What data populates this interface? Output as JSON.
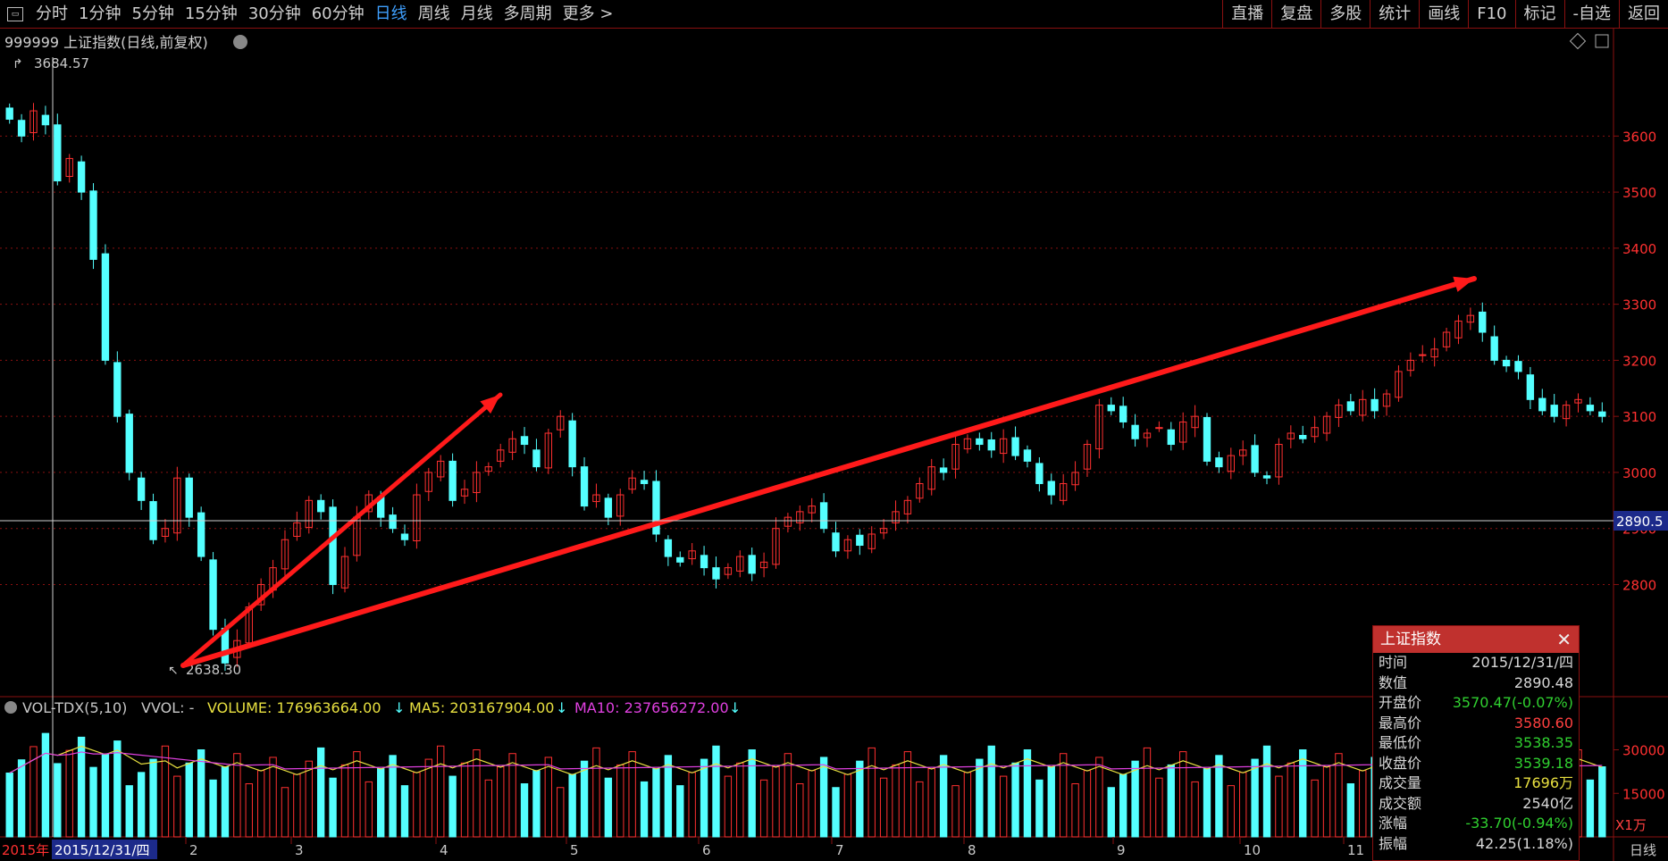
{
  "toolbar": {
    "menu_icon": "menu-icon",
    "periods": [
      "分时",
      "1分钟",
      "5分钟",
      "15分钟",
      "30分钟",
      "60分钟",
      "日线",
      "周线",
      "月线",
      "多周期",
      "更多 >"
    ],
    "active_period": "日线",
    "right_buttons": [
      "直播",
      "复盘",
      "多股",
      "统计",
      "画线",
      "F10",
      "标记",
      "-自选",
      "返回"
    ]
  },
  "chart_header": {
    "title": "999999 上证指数(日线,前复权)",
    "icons": [
      "dropdown-icon",
      "diamond-icon",
      "window-icon"
    ]
  },
  "price_markers": {
    "high": "3684.57",
    "low": "2638.30",
    "crosshair_value": "2890.5"
  },
  "price_axis_labels": [
    "3600",
    "3500",
    "3400",
    "3300",
    "3200",
    "3100",
    "3000",
    "2900",
    "2800"
  ],
  "volume_header": {
    "name": "VOL-TDX(5,10)",
    "vvol": "VVOL: -",
    "volume": "VOLUME: 176963664.00",
    "ma5": "MA5: 203167904.00",
    "ma10": "MA10: 237656272.00",
    "arrow": "↓"
  },
  "volume_axis_labels": [
    "30000",
    "15000"
  ],
  "volume_unit": "X1万",
  "date_axis": {
    "year_label": "2015年",
    "selected_date": "2015/12/31/四",
    "months": [
      "2",
      "3",
      "4",
      "5",
      "6",
      "7",
      "8",
      "9",
      "10",
      "11"
    ],
    "period_label": "日线"
  },
  "info_panel": {
    "title": "上证指数",
    "rows": [
      {
        "label": "时间",
        "value": "2015/12/31/四",
        "color": "#d8d8d8"
      },
      {
        "label": "数值",
        "value": "2890.48",
        "color": "#d8d8d8"
      },
      {
        "label": "开盘价",
        "value": "3570.47(-0.07%)",
        "color": "#30d030"
      },
      {
        "label": "最高价",
        "value": "3580.60",
        "color": "#ff4040"
      },
      {
        "label": "最低价",
        "value": "3538.35",
        "color": "#30d030"
      },
      {
        "label": "收盘价",
        "value": "3539.18",
        "color": "#30d030"
      },
      {
        "label": "成交量",
        "value": "17696万",
        "color": "#e8e040"
      },
      {
        "label": "成交额",
        "value": "2540亿",
        "color": "#d8d8d8"
      },
      {
        "label": "涨幅",
        "value": "-33.70(-0.94%)",
        "color": "#30d030"
      },
      {
        "label": "振幅",
        "value": "42.25(1.18%)",
        "color": "#d8d8d8"
      }
    ]
  },
  "colors": {
    "up": "#ff3030",
    "down": "#54ffff",
    "grid": "#8a1010",
    "arrow": "#ff1a1a",
    "ma5": "#e8e040",
    "ma10": "#e040e0"
  },
  "chart_data": {
    "type": "candlestick",
    "price_range": [
      2600,
      3720
    ],
    "closes": [
      3630,
      3600,
      3645,
      3620,
      3520,
      3560,
      3500,
      3380,
      3200,
      3100,
      3000,
      2950,
      2880,
      2900,
      2990,
      2920,
      2850,
      2720,
      2660,
      2700,
      2760,
      2800,
      2830,
      2880,
      2910,
      2950,
      2930,
      2800,
      2850,
      2920,
      2960,
      2920,
      2900,
      2880,
      2960,
      3000,
      3020,
      2950,
      2970,
      3000,
      3010,
      3040,
      3060,
      3050,
      3010,
      3070,
      3100,
      3010,
      2940,
      2960,
      2920,
      2960,
      2990,
      2980,
      2890,
      2850,
      2840,
      2860,
      2830,
      2810,
      2830,
      2850,
      2820,
      2840,
      2900,
      2920,
      2930,
      2940,
      2900,
      2860,
      2880,
      2870,
      2890,
      2900,
      2930,
      2950,
      2980,
      3010,
      3000,
      3050,
      3060,
      3050,
      3040,
      3060,
      3030,
      3020,
      2980,
      2960,
      2980,
      3000,
      3050,
      3120,
      3110,
      3090,
      3060,
      3070,
      3080,
      3050,
      3090,
      3100,
      3020,
      3010,
      3030,
      3040,
      3000,
      2990,
      3050,
      3070,
      3060,
      3080,
      3100,
      3120,
      3110,
      3130,
      3110,
      3140,
      3180,
      3200,
      3210,
      3220,
      3250,
      3270,
      3280,
      3250,
      3200,
      3190,
      3180,
      3130,
      3110,
      3100,
      3120,
      3130,
      3110,
      3100
    ],
    "volume_range": [
      0,
      40000
    ],
    "volume_unit": "万"
  }
}
